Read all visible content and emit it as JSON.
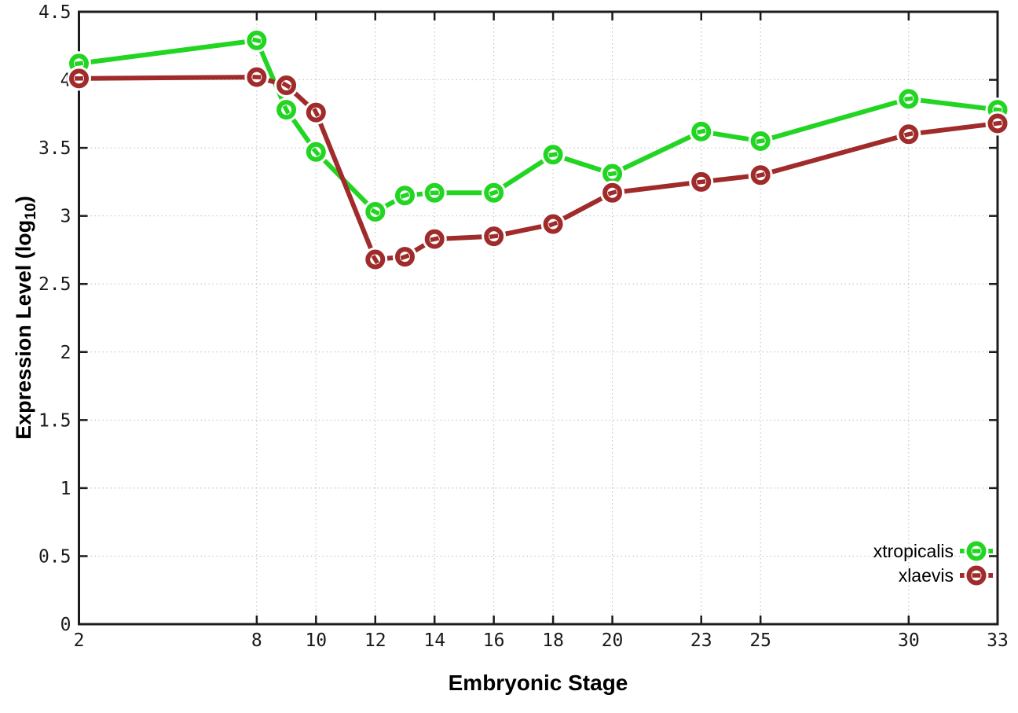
{
  "chart_data": {
    "type": "line",
    "title": "",
    "xlabel": "Embryonic Stage",
    "ylabel": {
      "prefix": "Expression Level (log",
      "sub": "10",
      "suffix": ")"
    },
    "x": [
      2,
      8,
      9,
      10,
      12,
      13,
      14,
      16,
      18,
      20,
      23,
      25,
      30,
      33
    ],
    "series": [
      {
        "name": "xtropicalis",
        "color": "#23d523",
        "values": [
          4.12,
          4.29,
          3.78,
          3.47,
          3.03,
          3.15,
          3.17,
          3.17,
          3.45,
          3.31,
          3.62,
          3.55,
          3.86,
          3.78
        ]
      },
      {
        "name": "xlaevis",
        "color": "#a02b2b",
        "values": [
          4.01,
          4.02,
          3.96,
          3.76,
          2.68,
          2.7,
          2.83,
          2.85,
          2.94,
          3.17,
          3.25,
          3.3,
          3.6,
          3.68
        ]
      }
    ],
    "x_ticks": [
      2,
      8,
      10,
      12,
      14,
      16,
      18,
      20,
      23,
      25,
      30,
      33
    ],
    "y_ticks": [
      0,
      0.5,
      1,
      1.5,
      2,
      2.5,
      3,
      3.5,
      4,
      4.5
    ],
    "xlim": [
      2,
      33
    ],
    "ylim": [
      0,
      4.5
    ],
    "grid": true,
    "legend_position": "inside-bottom-right",
    "marker": "open-circle"
  },
  "colors": {
    "background": "#ffffff",
    "axis": "#1c1c1c",
    "grid": "#bcbcbc",
    "tick_text": "#1a1a1a",
    "legend_text": "#000000"
  }
}
